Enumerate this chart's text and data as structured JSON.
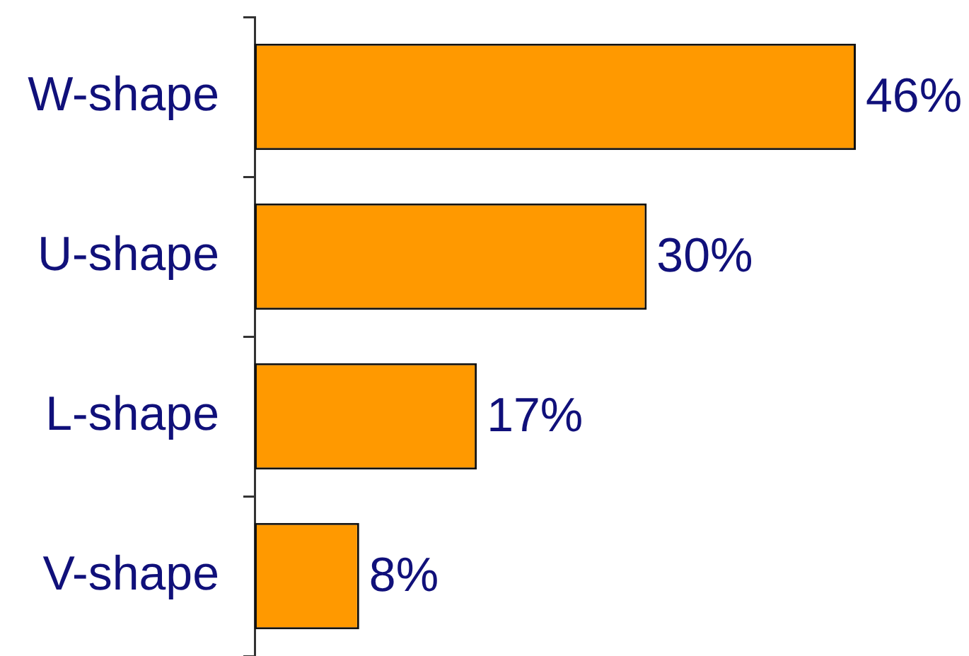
{
  "chart_data": {
    "type": "bar",
    "orientation": "horizontal",
    "categories": [
      "W-shape",
      "U-shape",
      "L-shape",
      "V-shape"
    ],
    "values": [
      46,
      30,
      17,
      8
    ],
    "value_labels": [
      "46%",
      "30%",
      "17%",
      "8%"
    ],
    "color": "#ff9900",
    "tick_labels": "y"
  }
}
